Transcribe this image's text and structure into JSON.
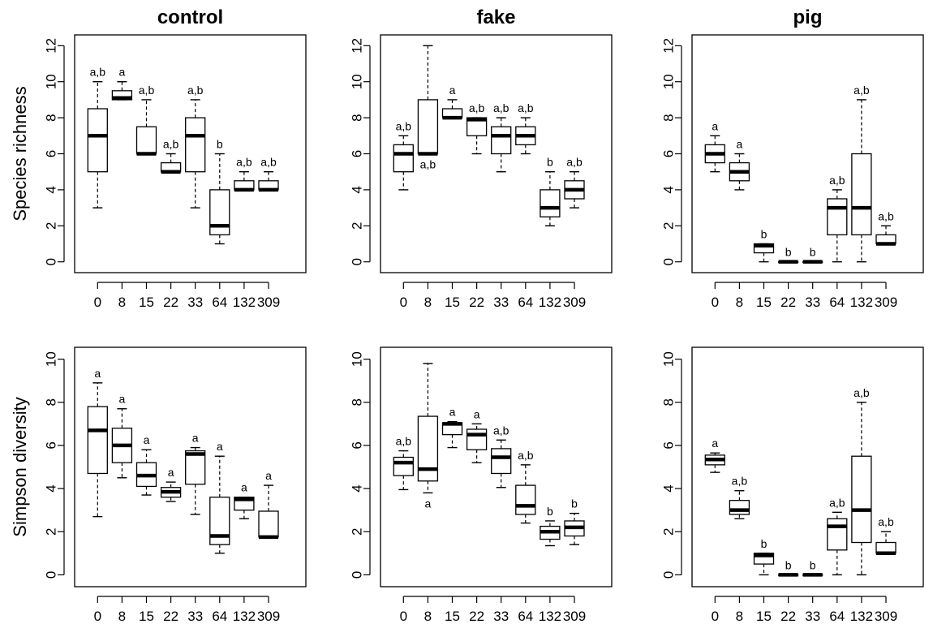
{
  "chart_data": {
    "type": "box",
    "layout": "2 rows x 3 columns, shared categories",
    "categories": [
      "0",
      "8",
      "15",
      "22",
      "33",
      "64",
      "132",
      "309"
    ],
    "columns": [
      "control",
      "fake",
      "pig"
    ],
    "rows": [
      {
        "ylabel": "Species richness",
        "ylim": [
          0,
          12
        ],
        "yticks": [
          0,
          2,
          4,
          6,
          8,
          10,
          12
        ]
      },
      {
        "ylabel": "Simpson diversity",
        "ylim": [
          0,
          10
        ],
        "yticks": [
          0,
          2,
          4,
          6,
          8,
          10
        ]
      }
    ],
    "panels": [
      {
        "title": "control",
        "row": 0,
        "col": 0,
        "boxes": [
          {
            "category": "0",
            "whisker_low": 3,
            "q1": 5,
            "median": 7,
            "q3": 8.5,
            "whisker_high": 10,
            "label": "a,b",
            "label_pos": "above"
          },
          {
            "category": "8",
            "whisker_low": 9,
            "q1": 9,
            "median": 9.1,
            "q3": 9.5,
            "whisker_high": 10,
            "label": "a",
            "label_pos": "above"
          },
          {
            "category": "15",
            "whisker_low": 6,
            "q1": 6,
            "median": 6,
            "q3": 7.5,
            "whisker_high": 9,
            "label": "a,b",
            "label_pos": "above"
          },
          {
            "category": "22",
            "whisker_low": 5,
            "q1": 5,
            "median": 5,
            "q3": 5.5,
            "whisker_high": 6,
            "label": "a,b",
            "label_pos": "above"
          },
          {
            "category": "33",
            "whisker_low": 3,
            "q1": 5,
            "median": 7,
            "q3": 8,
            "whisker_high": 9,
            "label": "a,b",
            "label_pos": "above"
          },
          {
            "category": "64",
            "whisker_low": 1,
            "q1": 1.5,
            "median": 2,
            "q3": 4,
            "whisker_high": 6,
            "label": "b",
            "label_pos": "above"
          },
          {
            "category": "132",
            "whisker_low": 4,
            "q1": 4,
            "median": 4,
            "q3": 4.5,
            "whisker_high": 5,
            "label": "a,b",
            "label_pos": "above"
          },
          {
            "category": "309",
            "whisker_low": 4,
            "q1": 4,
            "median": 4,
            "q3": 4.5,
            "whisker_high": 5,
            "label": "a,b",
            "label_pos": "above"
          }
        ]
      },
      {
        "title": "fake",
        "row": 0,
        "col": 1,
        "boxes": [
          {
            "category": "0",
            "whisker_low": 4,
            "q1": 5,
            "median": 6,
            "q3": 6.5,
            "whisker_high": 7,
            "label": "a,b",
            "label_pos": "above"
          },
          {
            "category": "8",
            "whisker_low": 6,
            "q1": 6,
            "median": 6,
            "q3": 9,
            "whisker_high": 12,
            "label": "a,b",
            "label_pos": "below"
          },
          {
            "category": "15",
            "whisker_low": 8,
            "q1": 8,
            "median": 8,
            "q3": 8.5,
            "whisker_high": 9,
            "label": "a",
            "label_pos": "above"
          },
          {
            "category": "22",
            "whisker_low": 6,
            "q1": 7,
            "median": 7.9,
            "q3": 8,
            "whisker_high": 8,
            "label": "a,b",
            "label_pos": "above"
          },
          {
            "category": "33",
            "whisker_low": 5,
            "q1": 6,
            "median": 7,
            "q3": 7.5,
            "whisker_high": 8,
            "label": "a,b",
            "label_pos": "above"
          },
          {
            "category": "64",
            "whisker_low": 6,
            "q1": 6.5,
            "median": 7,
            "q3": 7.5,
            "whisker_high": 8,
            "label": "a,b",
            "label_pos": "above"
          },
          {
            "category": "132",
            "whisker_low": 2,
            "q1": 2.5,
            "median": 3,
            "q3": 4,
            "whisker_high": 5,
            "label": "b",
            "label_pos": "above"
          },
          {
            "category": "309",
            "whisker_low": 3,
            "q1": 3.5,
            "median": 4,
            "q3": 4.5,
            "whisker_high": 5,
            "label": "a,b",
            "label_pos": "above"
          }
        ]
      },
      {
        "title": "pig",
        "row": 0,
        "col": 2,
        "boxes": [
          {
            "category": "0",
            "whisker_low": 5,
            "q1": 5.5,
            "median": 6,
            "q3": 6.5,
            "whisker_high": 7,
            "label": "a",
            "label_pos": "above"
          },
          {
            "category": "8",
            "whisker_low": 4,
            "q1": 4.5,
            "median": 5,
            "q3": 5.5,
            "whisker_high": 6,
            "label": "a",
            "label_pos": "above"
          },
          {
            "category": "15",
            "whisker_low": 0,
            "q1": 0.5,
            "median": 0.9,
            "q3": 1,
            "whisker_high": 1,
            "label": "b",
            "label_pos": "above"
          },
          {
            "category": "22",
            "whisker_low": 0,
            "q1": 0,
            "median": 0,
            "q3": 0,
            "whisker_high": 0,
            "label": "b",
            "label_pos": "above"
          },
          {
            "category": "33",
            "whisker_low": 0,
            "q1": 0,
            "median": 0,
            "q3": 0,
            "whisker_high": 0,
            "label": "b",
            "label_pos": "above"
          },
          {
            "category": "64",
            "whisker_low": 0,
            "q1": 1.5,
            "median": 3,
            "q3": 3.5,
            "whisker_high": 4,
            "label": "a,b",
            "label_pos": "above"
          },
          {
            "category": "132",
            "whisker_low": 0,
            "q1": 1.5,
            "median": 3,
            "q3": 6,
            "whisker_high": 9,
            "label": "a,b",
            "label_pos": "above"
          },
          {
            "category": "309",
            "whisker_low": 1,
            "q1": 1,
            "median": 1,
            "q3": 1.5,
            "whisker_high": 2,
            "label": "a,b",
            "label_pos": "above"
          }
        ]
      },
      {
        "title": "",
        "row": 1,
        "col": 0,
        "boxes": [
          {
            "category": "0",
            "whisker_low": 2.7,
            "q1": 4.7,
            "median": 6.7,
            "q3": 7.8,
            "whisker_high": 8.9,
            "label": "a",
            "label_pos": "above"
          },
          {
            "category": "8",
            "whisker_low": 4.5,
            "q1": 5.2,
            "median": 6.0,
            "q3": 6.8,
            "whisker_high": 7.7,
            "label": "a",
            "label_pos": "above"
          },
          {
            "category": "15",
            "whisker_low": 3.7,
            "q1": 4.1,
            "median": 4.6,
            "q3": 5.2,
            "whisker_high": 5.8,
            "label": "a",
            "label_pos": "above"
          },
          {
            "category": "22",
            "whisker_low": 3.4,
            "q1": 3.6,
            "median": 3.85,
            "q3": 4.05,
            "whisker_high": 4.3,
            "label": "a",
            "label_pos": "above"
          },
          {
            "category": "33",
            "whisker_low": 2.8,
            "q1": 4.2,
            "median": 5.6,
            "q3": 5.75,
            "whisker_high": 5.9,
            "label": "a",
            "label_pos": "above"
          },
          {
            "category": "64",
            "whisker_low": 1.0,
            "q1": 1.4,
            "median": 1.8,
            "q3": 3.6,
            "whisker_high": 5.5,
            "label": "a",
            "label_pos": "above"
          },
          {
            "category": "132",
            "whisker_low": 2.6,
            "q1": 3.0,
            "median": 3.5,
            "q3": 3.6,
            "whisker_high": 3.6,
            "label": "a",
            "label_pos": "above"
          },
          {
            "category": "309",
            "whisker_low": 1.75,
            "q1": 1.75,
            "median": 1.75,
            "q3": 2.95,
            "whisker_high": 4.15,
            "label": "a",
            "label_pos": "above"
          }
        ]
      },
      {
        "title": "",
        "row": 1,
        "col": 1,
        "boxes": [
          {
            "category": "0",
            "whisker_low": 3.95,
            "q1": 4.6,
            "median": 5.2,
            "q3": 5.45,
            "whisker_high": 5.75,
            "label": "a,b",
            "label_pos": "above"
          },
          {
            "category": "8",
            "whisker_low": 3.8,
            "q1": 4.35,
            "median": 4.9,
            "q3": 7.35,
            "whisker_high": 9.8,
            "label": "a",
            "label_pos": "below"
          },
          {
            "category": "15",
            "whisker_low": 5.9,
            "q1": 6.5,
            "median": 7.0,
            "q3": 7.05,
            "whisker_high": 7.1,
            "label": "a",
            "label_pos": "above"
          },
          {
            "category": "22",
            "whisker_low": 5.2,
            "q1": 5.8,
            "median": 6.5,
            "q3": 6.75,
            "whisker_high": 7.0,
            "label": "a",
            "label_pos": "above"
          },
          {
            "category": "33",
            "whisker_low": 4.05,
            "q1": 4.7,
            "median": 5.45,
            "q3": 5.85,
            "whisker_high": 6.25,
            "label": "a,b",
            "label_pos": "above"
          },
          {
            "category": "64",
            "whisker_low": 2.4,
            "q1": 2.8,
            "median": 3.2,
            "q3": 4.15,
            "whisker_high": 5.1,
            "label": "a,b",
            "label_pos": "above"
          },
          {
            "category": "132",
            "whisker_low": 1.35,
            "q1": 1.65,
            "median": 2.0,
            "q3": 2.25,
            "whisker_high": 2.5,
            "label": "b",
            "label_pos": "above"
          },
          {
            "category": "309",
            "whisker_low": 1.4,
            "q1": 1.8,
            "median": 2.2,
            "q3": 2.5,
            "whisker_high": 2.85,
            "label": "b",
            "label_pos": "above"
          }
        ]
      },
      {
        "title": "",
        "row": 1,
        "col": 2,
        "boxes": [
          {
            "category": "0",
            "whisker_low": 4.75,
            "q1": 5.1,
            "median": 5.35,
            "q3": 5.55,
            "whisker_high": 5.65,
            "label": "a",
            "label_pos": "above"
          },
          {
            "category": "8",
            "whisker_low": 2.6,
            "q1": 2.8,
            "median": 3.0,
            "q3": 3.45,
            "whisker_high": 3.9,
            "label": "a,b",
            "label_pos": "above"
          },
          {
            "category": "15",
            "whisker_low": 0,
            "q1": 0.5,
            "median": 0.9,
            "q3": 1.0,
            "whisker_high": 1.0,
            "label": "b",
            "label_pos": "above"
          },
          {
            "category": "22",
            "whisker_low": 0,
            "q1": 0,
            "median": 0,
            "q3": 0,
            "whisker_high": 0,
            "label": "b",
            "label_pos": "above"
          },
          {
            "category": "33",
            "whisker_low": 0,
            "q1": 0,
            "median": 0,
            "q3": 0,
            "whisker_high": 0,
            "label": "b",
            "label_pos": "above"
          },
          {
            "category": "64",
            "whisker_low": 0,
            "q1": 1.15,
            "median": 2.25,
            "q3": 2.6,
            "whisker_high": 2.9,
            "label": "a,b",
            "label_pos": "above"
          },
          {
            "category": "132",
            "whisker_low": 0,
            "q1": 1.5,
            "median": 3.0,
            "q3": 5.5,
            "whisker_high": 8.0,
            "label": "a,b",
            "label_pos": "above"
          },
          {
            "category": "309",
            "whisker_low": 1.0,
            "q1": 1.0,
            "median": 1.0,
            "q3": 1.5,
            "whisker_high": 2.0,
            "label": "a,b",
            "label_pos": "above"
          }
        ]
      }
    ],
    "colors": {
      "box_fill": "#ffffff",
      "stroke": "#000000",
      "median": "#000000"
    }
  }
}
